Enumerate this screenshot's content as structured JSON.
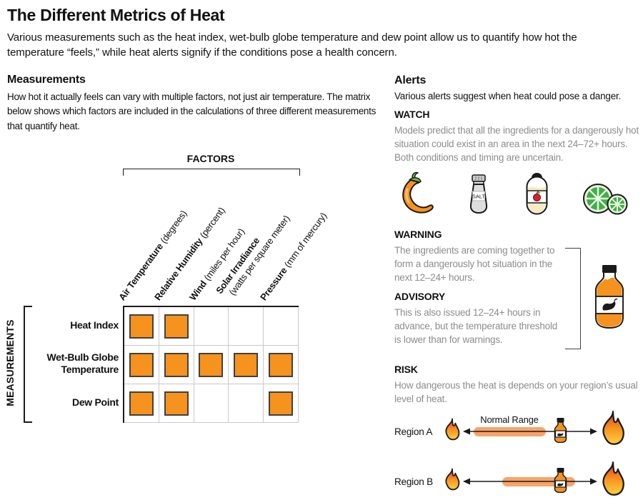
{
  "page": {
    "title": "The Different Metrics of Heat",
    "subtitle": "Various measurements such as the heat index, wet-bulb globe temperature and dew point allow us to quantify how hot the temperature “feels,” while heat alerts signify if the conditions pose a health concern."
  },
  "measurements": {
    "heading": "Measurements",
    "description": "How hot it actually feels can vary with multiple factors, not just air temperature. The matrix below shows which factors are included in the calculations of three different measurements that quantify heat.",
    "factors_label": "FACTORS",
    "measurements_label": "MEASUREMENTS",
    "columns": [
      {
        "name": "Air Temperature",
        "unit": "(degrees)"
      },
      {
        "name": "Relative Humidity",
        "unit": "(percent)"
      },
      {
        "name": "Wind",
        "unit": "(miles per hour)"
      },
      {
        "name": "Solar Irradiance",
        "unit": "(watts per square meter)",
        "unit_on_second_line": true
      },
      {
        "name": "Pressure",
        "unit": "(mm of mercury)"
      }
    ],
    "rows": [
      {
        "name": "Heat Index",
        "included": [
          true,
          true,
          false,
          false,
          false
        ]
      },
      {
        "name": "Wet-Bulb Globe Temperature",
        "included": [
          true,
          true,
          true,
          true,
          true
        ]
      },
      {
        "name": "Dew Point",
        "included": [
          true,
          true,
          false,
          false,
          true
        ]
      }
    ]
  },
  "alerts": {
    "heading": "Alerts",
    "description": "Various alerts suggest when heat could pose a danger.",
    "watch": {
      "label": "WATCH",
      "text": "Models predict that all the ingredients for a dangerously hot situation could exist in an area in the next 24–72+ hours. Both conditions and timing are uncertain.",
      "salt_label": "SALT",
      "icons": [
        "chili-pepper",
        "salt-shaker",
        "vinegar-bottle",
        "lime-slices"
      ]
    },
    "warning": {
      "label": "WARNING",
      "text": "The ingredients are coming together to form a dangerously hot situation in the next 12–24+ hours."
    },
    "advisory": {
      "label": "ADVISORY",
      "text": "This is also issued 12–24+ hours in advance, but the temperature threshold is lower than for warnings."
    },
    "risk": {
      "label": "RISK",
      "text": "How dangerous the heat is depends on your region’s usual level of heat.",
      "normal_range_label": "Normal Range",
      "regions": [
        {
          "label": "Region A"
        },
        {
          "label": "Region B"
        }
      ]
    }
  },
  "colors": {
    "accent_orange": "#F6921E",
    "pill_orange": "#F7A469",
    "gray_text": "#8d8d8d",
    "flame_red": "#E8402A",
    "flame_yellow": "#FFC83D",
    "lime_green": "#3FAE49",
    "apple_red": "#D5212E"
  }
}
